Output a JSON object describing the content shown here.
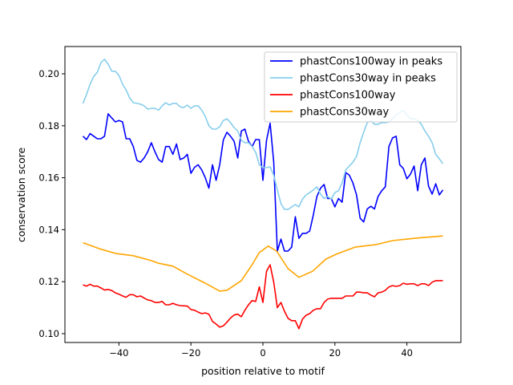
{
  "chart_data": {
    "type": "line",
    "title": "",
    "xlabel": "position relative to motif",
    "ylabel": "conservation score",
    "xlim": [
      -55,
      55
    ],
    "ylim": [
      0.0966,
      0.2105
    ],
    "xticks": [
      -40,
      -20,
      0,
      20,
      40
    ],
    "xtick_labels": [
      "−40",
      "−20",
      "0",
      "20",
      "40"
    ],
    "yticks": [
      0.1,
      0.12,
      0.14,
      0.16,
      0.18,
      0.2
    ],
    "ytick_labels": [
      "0.10",
      "0.12",
      "0.14",
      "0.16",
      "0.18",
      "0.20"
    ],
    "grid": false,
    "legend_position": "top-right",
    "series": [
      {
        "name": "phastCons100way in peaks",
        "color": "#0000ff",
        "x_start": -50,
        "x_step": 1,
        "values": [
          0.176,
          0.1747,
          0.177,
          0.176,
          0.175,
          0.175,
          0.176,
          0.1846,
          0.183,
          0.1815,
          0.182,
          0.1815,
          0.175,
          0.175,
          0.172,
          0.1667,
          0.166,
          0.1676,
          0.17,
          0.1735,
          0.17,
          0.167,
          0.166,
          0.172,
          0.172,
          0.169,
          0.173,
          0.167,
          0.1676,
          0.169,
          0.1617,
          0.164,
          0.165,
          0.163,
          0.16,
          0.156,
          0.165,
          0.159,
          0.165,
          0.1745,
          0.1775,
          0.176,
          0.174,
          0.1676,
          0.178,
          0.1787,
          0.174,
          0.172,
          0.1747,
          0.1747,
          0.159,
          0.1744,
          0.181,
          0.166,
          0.1318,
          0.1364,
          0.1318,
          0.1318,
          0.1333,
          0.145,
          0.1367,
          0.1386,
          0.1386,
          0.1395,
          0.1457,
          0.1528,
          0.156,
          0.1574,
          0.152,
          0.152,
          0.1488,
          0.152,
          0.1506,
          0.162,
          0.161,
          0.158,
          0.1534,
          0.1444,
          0.143,
          0.148,
          0.149,
          0.148,
          0.1528,
          0.155,
          0.1565,
          0.172,
          0.1753,
          0.176,
          0.165,
          0.1636,
          0.1596,
          0.1614,
          0.1645,
          0.155,
          0.165,
          0.1676,
          0.1568,
          0.1537,
          0.1577,
          0.1534,
          0.1553
        ]
      },
      {
        "name": "phastCons30way in peaks",
        "color": "#87ceeb",
        "x_start": -50,
        "x_step": 1,
        "values": [
          0.1886,
          0.192,
          0.196,
          0.199,
          0.2006,
          0.2043,
          0.2056,
          0.2037,
          0.201,
          0.201,
          0.1994,
          0.196,
          0.1938,
          0.1907,
          0.1889,
          0.1886,
          0.1883,
          0.1877,
          0.1864,
          0.1867,
          0.1867,
          0.186,
          0.1877,
          0.1889,
          0.188,
          0.1886,
          0.1886,
          0.1873,
          0.187,
          0.188,
          0.1867,
          0.1877,
          0.1877,
          0.186,
          0.1836,
          0.18,
          0.1787,
          0.1787,
          0.1796,
          0.182,
          0.1827,
          0.1812,
          0.1793,
          0.178,
          0.1744,
          0.1735,
          0.1735,
          0.172,
          0.1698,
          0.165,
          0.1639,
          0.1639,
          0.1642,
          0.161,
          0.1553,
          0.15,
          0.1478,
          0.1478,
          0.1488,
          0.1497,
          0.1488,
          0.1518,
          0.1534,
          0.1543,
          0.1553,
          0.1565,
          0.1537,
          0.152,
          0.1528,
          0.1518,
          0.1543,
          0.155,
          0.158,
          0.163,
          0.1645,
          0.166,
          0.1682,
          0.1735,
          0.1775,
          0.1812,
          0.182,
          0.1806,
          0.1806,
          0.1812,
          0.1812,
          0.1815,
          0.1827,
          0.1842,
          0.1852,
          0.1858,
          0.1842,
          0.1827,
          0.1827,
          0.182,
          0.1806,
          0.178,
          0.176,
          0.1735,
          0.169,
          0.1673,
          0.1654
        ]
      },
      {
        "name": "phastCons100way",
        "color": "#ff0000",
        "x_start": -50,
        "x_step": 1,
        "values": [
          0.1188,
          0.1183,
          0.119,
          0.1183,
          0.1183,
          0.1176,
          0.1168,
          0.117,
          0.1166,
          0.1157,
          0.1152,
          0.1145,
          0.114,
          0.115,
          0.115,
          0.1142,
          0.1145,
          0.1137,
          0.113,
          0.1127,
          0.112,
          0.112,
          0.1124,
          0.1111,
          0.1111,
          0.1117,
          0.1111,
          0.1108,
          0.1107,
          0.1106,
          0.1093,
          0.109,
          0.1083,
          0.1077,
          0.108,
          0.1075,
          0.1047,
          0.1037,
          0.1025,
          0.103,
          0.1044,
          0.106,
          0.1072,
          0.1075,
          0.1065,
          0.109,
          0.1111,
          0.1127,
          0.1124,
          0.118,
          0.112,
          0.124,
          0.1265,
          0.1198,
          0.11,
          0.112,
          0.1086,
          0.1059,
          0.105,
          0.105,
          0.1019,
          0.1056,
          0.1071,
          0.1077,
          0.109,
          0.1096,
          0.1096,
          0.112,
          0.1133,
          0.1136,
          0.1136,
          0.1136,
          0.1136,
          0.1145,
          0.1145,
          0.1145,
          0.116,
          0.116,
          0.1157,
          0.1157,
          0.1148,
          0.1142,
          0.1157,
          0.116,
          0.1167,
          0.118,
          0.1185,
          0.1182,
          0.1185,
          0.1194,
          0.119,
          0.1192,
          0.1192,
          0.1185,
          0.1192,
          0.1192,
          0.1185,
          0.1198,
          0.1204,
          0.1204,
          0.1204
        ]
      },
      {
        "name": "phastCons30way",
        "color": "#ffa500",
        "x": [
          -50,
          -45,
          -41,
          -36,
          -31,
          -29,
          -25,
          -21,
          -16,
          -12,
          -10,
          -6,
          -3,
          -1,
          1.5,
          3.8,
          7,
          10,
          13.8,
          17.5,
          20.4,
          25.6,
          31.5,
          36,
          42.7,
          50
        ],
        "values": [
          0.135,
          0.1325,
          0.1309,
          0.13,
          0.1281,
          0.1271,
          0.126,
          0.1229,
          0.1194,
          0.1164,
          0.1167,
          0.1204,
          0.1265,
          0.1312,
          0.1337,
          0.1318,
          0.125,
          0.1217,
          0.124,
          0.1287,
          0.1306,
          0.1333,
          0.1343,
          0.1358,
          0.1368,
          0.1376
        ]
      }
    ]
  }
}
